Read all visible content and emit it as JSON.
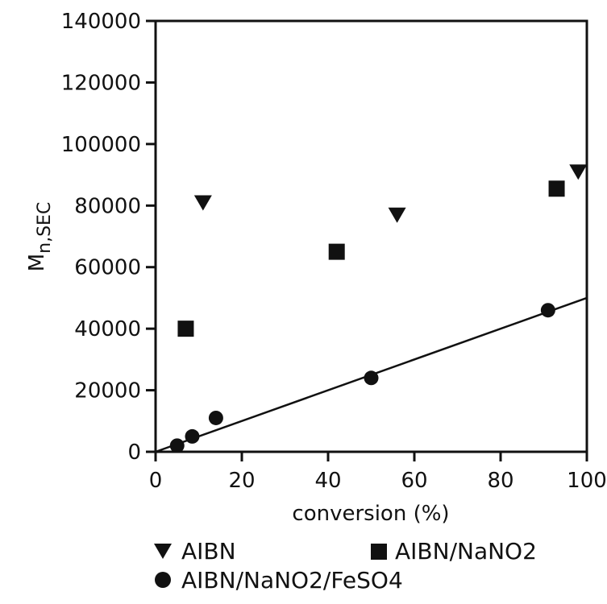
{
  "chart_data": {
    "type": "scatter",
    "title": "",
    "xlabel": "conversion (%)",
    "ylabel_main": "M",
    "ylabel_sub": "n,SEC",
    "xlim": [
      0,
      100
    ],
    "ylim": [
      0,
      140000
    ],
    "xticks": [
      0,
      20,
      40,
      60,
      80,
      100
    ],
    "yticks": [
      0,
      20000,
      40000,
      60000,
      80000,
      100000,
      120000,
      140000
    ],
    "grid": false,
    "legend_position": "below",
    "series": [
      {
        "name": "AIBN",
        "marker": "triangle-down",
        "color": "#111111",
        "points": [
          {
            "x": 11,
            "y": 81000
          },
          {
            "x": 56,
            "y": 77000
          },
          {
            "x": 98,
            "y": 91000
          }
        ]
      },
      {
        "name": "AIBN/NaNO2",
        "marker": "square",
        "color": "#111111",
        "points": [
          {
            "x": 7,
            "y": 40000
          },
          {
            "x": 42,
            "y": 65000
          },
          {
            "x": 93,
            "y": 85500
          }
        ]
      },
      {
        "name": "AIBN/NaNO2/FeSO4",
        "marker": "circle",
        "color": "#111111",
        "points": [
          {
            "x": 5,
            "y": 2000
          },
          {
            "x": 8.5,
            "y": 5000
          },
          {
            "x": 14,
            "y": 11000
          },
          {
            "x": 50,
            "y": 24000
          },
          {
            "x": 91,
            "y": 46000
          }
        ]
      }
    ],
    "trendline": {
      "x": [
        0,
        100
      ],
      "y": [
        0,
        50000
      ],
      "color": "#111111"
    }
  }
}
